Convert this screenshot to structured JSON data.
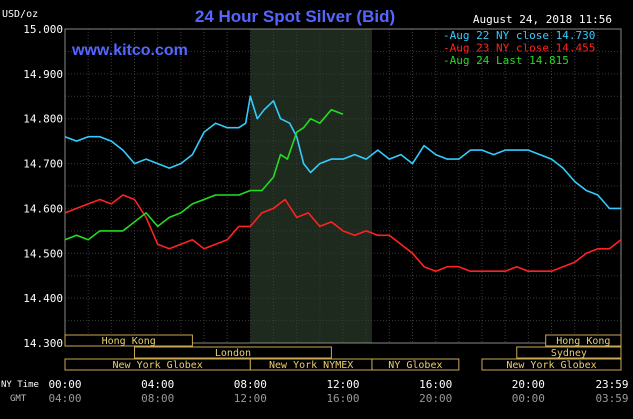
{
  "header": {
    "units": "USD/oz",
    "title": "24 Hour Spot Silver (Bid)",
    "timestamp": "August 24, 2018 11:56",
    "website": "www.kitco.com"
  },
  "legend": [
    {
      "text": "Aug 22 NY close 14.730",
      "color": "#33ccff"
    },
    {
      "text": "Aug 23 NY close 14.455",
      "color": "#ff2222"
    },
    {
      "text": "Aug 24 Last 14.815",
      "color": "#22dd22"
    }
  ],
  "axes": {
    "y_ticks": [
      "15.000",
      "14.900",
      "14.800",
      "14.700",
      "14.600",
      "14.500",
      "14.400",
      "14.300"
    ],
    "x_row1_label": "NY Time",
    "x_row2_label": "GMT",
    "x_ticks_ny": [
      "00:00",
      "04:00",
      "08:00",
      "12:00",
      "16:00",
      "20:00",
      "23:59"
    ],
    "x_ticks_gmt": [
      "04:00",
      "08:00",
      "12:00",
      "16:00",
      "20:00",
      "00:00",
      "03:59"
    ]
  },
  "sessions": [
    {
      "label": "Hong Kong",
      "start": 0,
      "end": 5.5,
      "row": 0
    },
    {
      "label": "Hong Kong",
      "start": 20.75,
      "end": 24,
      "row": 0
    },
    {
      "label": "London",
      "start": 3,
      "end": 11.5,
      "row": 1
    },
    {
      "label": "Sydney",
      "start": 19.5,
      "end": 24,
      "row": 1
    },
    {
      "label": "New York Globex",
      "start": 0,
      "end": 8,
      "row": 2
    },
    {
      "label": "New York NYMEX",
      "start": 8,
      "end": 13.25,
      "row": 2
    },
    {
      "label": "NY Globex",
      "start": 13.25,
      "end": 17,
      "row": 2
    },
    {
      "label": "New York Globex",
      "start": 18,
      "end": 24,
      "row": 2
    }
  ],
  "chart_data": {
    "type": "line",
    "ylim": [
      14.3,
      15.0
    ],
    "xlim": [
      0,
      24
    ],
    "grid": true,
    "legend_position": "top-right",
    "highlight_hours": [
      8,
      13.25
    ],
    "series": [
      {
        "name": "Aug 22 NY close 14.730",
        "color": "#33ccff",
        "x": [
          0,
          0.5,
          1,
          1.5,
          2,
          2.5,
          3,
          3.5,
          4,
          4.5,
          5,
          5.5,
          6,
          6.5,
          7,
          7.5,
          7.8,
          8,
          8.3,
          8.6,
          9,
          9.3,
          9.7,
          10,
          10.3,
          10.6,
          11,
          11.5,
          12,
          12.5,
          13,
          13.5,
          14,
          14.5,
          15,
          15.5,
          16,
          16.5,
          17,
          17.5,
          18,
          18.5,
          19,
          19.5,
          20,
          20.5,
          21,
          21.5,
          22,
          22.5,
          23,
          23.5,
          24
        ],
        "y": [
          14.76,
          14.75,
          14.76,
          14.76,
          14.75,
          14.73,
          14.7,
          14.71,
          14.7,
          14.69,
          14.7,
          14.72,
          14.77,
          14.79,
          14.78,
          14.78,
          14.79,
          14.85,
          14.8,
          14.82,
          14.84,
          14.8,
          14.79,
          14.76,
          14.7,
          14.68,
          14.7,
          14.71,
          14.71,
          14.72,
          14.71,
          14.73,
          14.71,
          14.72,
          14.7,
          14.74,
          14.72,
          14.71,
          14.71,
          14.73,
          14.73,
          14.72,
          14.73,
          14.73,
          14.73,
          14.72,
          14.71,
          14.69,
          14.66,
          14.64,
          14.63,
          14.6,
          14.6
        ]
      },
      {
        "name": "Aug 23 NY close 14.455",
        "color": "#ff2222",
        "x": [
          0,
          0.5,
          1,
          1.5,
          2,
          2.5,
          3,
          3.5,
          4,
          4.5,
          5,
          5.5,
          6,
          6.5,
          7,
          7.5,
          8,
          8.5,
          9,
          9.5,
          10,
          10.5,
          11,
          11.5,
          12,
          12.5,
          13,
          13.5,
          14,
          14.5,
          15,
          15.5,
          16,
          16.5,
          17,
          17.5,
          18,
          18.5,
          19,
          19.5,
          20,
          20.5,
          21,
          21.5,
          22,
          22.5,
          23,
          23.5,
          24
        ],
        "y": [
          14.59,
          14.6,
          14.61,
          14.62,
          14.61,
          14.63,
          14.62,
          14.58,
          14.52,
          14.51,
          14.52,
          14.53,
          14.51,
          14.52,
          14.53,
          14.56,
          14.56,
          14.59,
          14.6,
          14.62,
          14.58,
          14.59,
          14.56,
          14.57,
          14.55,
          14.54,
          14.55,
          14.54,
          14.54,
          14.52,
          14.5,
          14.47,
          14.46,
          14.47,
          14.47,
          14.46,
          14.46,
          14.46,
          14.46,
          14.47,
          14.46,
          14.46,
          14.46,
          14.47,
          14.48,
          14.5,
          14.51,
          14.51,
          14.53
        ]
      },
      {
        "name": "Aug 24 Last 14.815",
        "color": "#22dd22",
        "x": [
          0,
          0.5,
          1,
          1.5,
          2,
          2.5,
          3,
          3.5,
          4,
          4.5,
          5,
          5.5,
          6,
          6.5,
          7,
          7.5,
          8,
          8.5,
          9,
          9.3,
          9.6,
          10,
          10.3,
          10.6,
          11,
          11.5,
          12
        ],
        "y": [
          14.53,
          14.54,
          14.53,
          14.55,
          14.55,
          14.55,
          14.57,
          14.59,
          14.56,
          14.58,
          14.59,
          14.61,
          14.62,
          14.63,
          14.63,
          14.63,
          14.64,
          14.64,
          14.67,
          14.72,
          14.71,
          14.77,
          14.78,
          14.8,
          14.79,
          14.82,
          14.81
        ]
      }
    ]
  }
}
